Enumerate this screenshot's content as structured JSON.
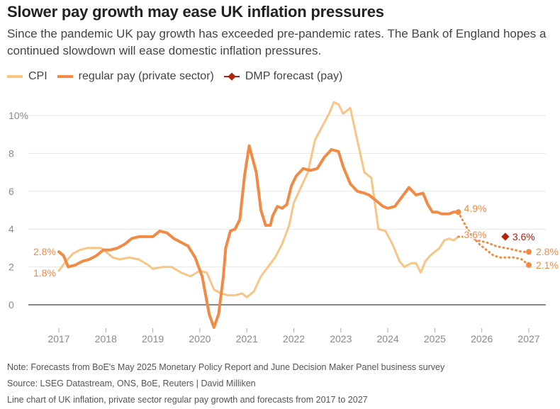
{
  "header": {
    "title": "Slower pay growth may ease UK inflation pressures",
    "subtitle": "Since the pandemic UK pay growth has exceeded pre-pandemic rates. The Bank of England hopes a continued slowdown will ease domestic inflation pressures."
  },
  "legend": {
    "cpi": "CPI",
    "pay": "regular pay (private sector)",
    "dmp": "DMP forecast (pay)"
  },
  "footer": {
    "note": "Note: Forecasts from BoE's May 2025 Monetary Policy Report and June Decision Maker Panel business survey",
    "source": "Source: LSEG Datastream, ONS, BoE, Reuters | David Milliken",
    "caption": "Line chart of UK inflation, private sector regular pay growth and forecasts from 2017 to 2027"
  },
  "chart_data": {
    "type": "line",
    "xlim": [
      2017,
      2027
    ],
    "ylim": [
      -1.5,
      11
    ],
    "yticks": [
      0,
      2,
      4,
      6,
      8,
      10
    ],
    "ytick_labels": [
      "0",
      "2",
      "4",
      "6",
      "8",
      "10%"
    ],
    "xticks": [
      2017,
      2018,
      2019,
      2020,
      2021,
      2022,
      2023,
      2024,
      2025,
      2026,
      2027
    ],
    "xtick_labels": [
      "2017",
      "2018",
      "2019",
      "2020",
      "2021",
      "2022",
      "2023",
      "2024",
      "2025",
      "2026",
      "2027"
    ],
    "colors": {
      "cpi": "#f8c585",
      "pay": "#f08a45",
      "dmp": "#b2220f",
      "axis": "#444444",
      "grid": "#e6e6e6"
    },
    "series": [
      {
        "name": "CPI",
        "x": [
          2017.0,
          2017.15,
          2017.3,
          2017.45,
          2017.6,
          2017.75,
          2017.9,
          2018.0,
          2018.15,
          2018.3,
          2018.5,
          2018.7,
          2018.9,
          2019.0,
          2019.2,
          2019.4,
          2019.6,
          2019.8,
          2020.0,
          2020.15,
          2020.3,
          2020.45,
          2020.6,
          2020.75,
          2020.9,
          2021.0,
          2021.15,
          2021.3,
          2021.45,
          2021.6,
          2021.75,
          2021.9,
          2022.0,
          2022.15,
          2022.3,
          2022.45,
          2022.6,
          2022.75,
          2022.85,
          2022.95,
          2023.05,
          2023.2,
          2023.35,
          2023.5,
          2023.65,
          2023.8,
          2023.95,
          2024.1,
          2024.25,
          2024.35,
          2024.5,
          2024.6,
          2024.7,
          2024.8,
          2024.9,
          2025.0,
          2025.1,
          2025.2,
          2025.3,
          2025.4,
          2025.5
        ],
        "values": [
          1.8,
          2.3,
          2.7,
          2.9,
          3.0,
          3.0,
          3.0,
          2.8,
          2.5,
          2.4,
          2.5,
          2.4,
          2.1,
          1.9,
          2.0,
          2.0,
          1.7,
          1.5,
          1.8,
          1.7,
          0.8,
          0.6,
          0.5,
          0.5,
          0.6,
          0.4,
          0.7,
          1.5,
          2.0,
          2.5,
          3.2,
          4.2,
          5.4,
          6.2,
          7.0,
          8.7,
          9.4,
          10.1,
          10.7,
          10.6,
          10.1,
          10.4,
          8.7,
          7.0,
          6.7,
          4.0,
          3.9,
          3.2,
          2.3,
          2.0,
          2.2,
          2.2,
          1.7,
          2.3,
          2.6,
          2.8,
          3.0,
          3.4,
          3.5,
          3.4,
          3.6
        ]
      },
      {
        "name": "regular pay (private sector)",
        "x": [
          2017.0,
          2017.1,
          2017.2,
          2017.35,
          2017.5,
          2017.65,
          2017.8,
          2017.95,
          2018.1,
          2018.25,
          2018.4,
          2018.55,
          2018.7,
          2018.85,
          2019.0,
          2019.15,
          2019.3,
          2019.45,
          2019.6,
          2019.75,
          2019.9,
          2020.05,
          2020.2,
          2020.3,
          2020.4,
          2020.5,
          2020.55,
          2020.65,
          2020.75,
          2020.85,
          2020.95,
          2021.05,
          2021.2,
          2021.3,
          2021.4,
          2021.5,
          2021.55,
          2021.65,
          2021.75,
          2021.85,
          2021.95,
          2022.05,
          2022.2,
          2022.35,
          2022.5,
          2022.65,
          2022.8,
          2022.95,
          2023.05,
          2023.2,
          2023.35,
          2023.5,
          2023.6,
          2023.75,
          2023.9,
          2024.0,
          2024.15,
          2024.3,
          2024.45,
          2024.6,
          2024.75,
          2024.85,
          2024.95,
          2025.05,
          2025.15,
          2025.3,
          2025.4,
          2025.5
        ],
        "values": [
          2.8,
          2.6,
          2.0,
          2.1,
          2.3,
          2.4,
          2.6,
          2.9,
          2.9,
          3.0,
          3.2,
          3.5,
          3.6,
          3.6,
          3.6,
          3.9,
          3.8,
          3.5,
          3.3,
          3.1,
          2.5,
          1.5,
          -0.5,
          -1.2,
          -0.5,
          1.5,
          3.0,
          3.9,
          4.0,
          4.5,
          6.8,
          8.4,
          7.0,
          5.0,
          4.2,
          4.2,
          4.7,
          5.2,
          5.1,
          5.3,
          6.3,
          6.8,
          7.2,
          7.1,
          7.2,
          7.8,
          8.2,
          8.1,
          7.3,
          6.4,
          6.0,
          5.9,
          5.8,
          5.5,
          5.2,
          5.1,
          5.2,
          5.7,
          6.2,
          5.8,
          5.9,
          5.3,
          4.9,
          4.9,
          4.8,
          4.8,
          4.9,
          4.9
        ]
      },
      {
        "name": "pay forecast (MPR)",
        "style": "dotted",
        "x": [
          2025.5,
          2025.65,
          2025.8,
          2025.95,
          2026.1,
          2026.25,
          2026.4,
          2026.55,
          2026.7,
          2026.85,
          2027.0
        ],
        "values": [
          4.9,
          4.2,
          3.6,
          3.2,
          2.9,
          2.6,
          2.5,
          2.5,
          2.5,
          2.4,
          2.1
        ]
      },
      {
        "name": "CPI forecast (MPR)",
        "style": "dotted",
        "x": [
          2025.5,
          2025.7,
          2025.9,
          2026.1,
          2026.3,
          2026.5,
          2026.7,
          2026.85,
          2027.0
        ],
        "values": [
          3.6,
          3.6,
          3.4,
          3.3,
          3.1,
          3.0,
          2.9,
          2.8,
          2.8
        ]
      },
      {
        "name": "DMP forecast (pay)",
        "type": "point",
        "x": [
          2026.5
        ],
        "values": [
          3.6
        ]
      }
    ],
    "annotations": [
      {
        "text": "2.8%",
        "series": "regular pay (private sector)",
        "x": 2017.0,
        "y": 2.8
      },
      {
        "text": "1.8%",
        "series": "CPI",
        "x": 2017.0,
        "y": 1.8
      },
      {
        "text": "4.9%",
        "series": "regular pay (private sector)",
        "x": 2025.5,
        "y": 4.9
      },
      {
        "text": "3.6%",
        "series": "CPI",
        "x": 2025.5,
        "y": 3.6
      },
      {
        "text": "3.6%",
        "series": "DMP forecast (pay)",
        "x": 2026.5,
        "y": 3.6
      },
      {
        "text": "2.8%",
        "series": "CPI forecast (MPR)",
        "x": 2027.0,
        "y": 2.8
      },
      {
        "text": "2.1%",
        "series": "pay forecast (MPR)",
        "x": 2027.0,
        "y": 2.1
      }
    ]
  }
}
